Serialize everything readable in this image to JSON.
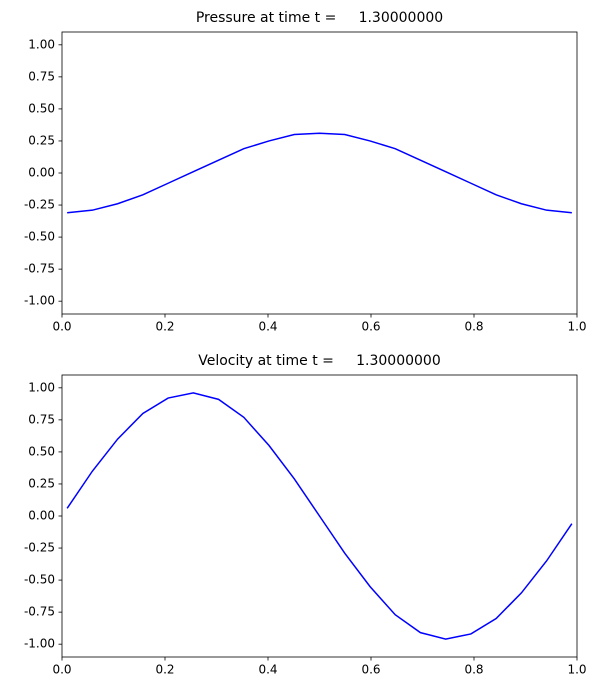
{
  "chart_data": [
    {
      "type": "line",
      "title": "Pressure at time t =     1.30000000",
      "x": [
        0.01,
        0.059,
        0.108,
        0.157,
        0.206,
        0.255,
        0.304,
        0.353,
        0.402,
        0.451,
        0.5,
        0.549,
        0.598,
        0.647,
        0.696,
        0.745,
        0.794,
        0.843,
        0.892,
        0.941,
        0.99
      ],
      "series": [
        {
          "color": "#0000ff",
          "values": [
            -0.31,
            -0.29,
            -0.24,
            -0.17,
            -0.08,
            0.01,
            0.1,
            0.19,
            0.25,
            0.3,
            0.31,
            0.3,
            0.25,
            0.19,
            0.1,
            0.01,
            -0.08,
            -0.17,
            -0.24,
            -0.29,
            -0.31
          ]
        }
      ],
      "xlim": [
        0,
        1
      ],
      "xticks": [
        {
          "value": 0,
          "label": "0.0"
        },
        0.2,
        0.4,
        0.6,
        0.8,
        {
          "value": 1,
          "label": "1.0"
        }
      ],
      "ylim": [
        -1.1,
        1.1
      ],
      "yticks": [
        {
          "value": -1,
          "label": "-1.00"
        },
        -0.75,
        {
          "value": -0.5,
          "label": "-0.50"
        },
        -0.25,
        {
          "value": 0,
          "label": "0.00"
        },
        0.25,
        {
          "value": 0.5,
          "label": "0.50"
        },
        0.75,
        {
          "value": 1,
          "label": "1.00"
        }
      ]
    },
    {
      "type": "line",
      "title": "Velocity at time t =     1.30000000",
      "x": [
        0.01,
        0.059,
        0.108,
        0.157,
        0.206,
        0.255,
        0.304,
        0.353,
        0.402,
        0.451,
        0.5,
        0.549,
        0.598,
        0.647,
        0.696,
        0.745,
        0.794,
        0.843,
        0.892,
        0.941,
        0.99
      ],
      "series": [
        {
          "color": "#0000ff",
          "values": [
            0.06,
            0.35,
            0.6,
            0.8,
            0.92,
            0.96,
            0.91,
            0.77,
            0.55,
            0.29,
            0.0,
            -0.29,
            -0.55,
            -0.77,
            -0.91,
            -0.96,
            -0.92,
            -0.8,
            -0.6,
            -0.35,
            -0.06
          ]
        }
      ],
      "xlim": [
        0,
        1
      ],
      "xticks": [
        {
          "value": 0,
          "label": "0.0"
        },
        0.2,
        0.4,
        0.6,
        0.8,
        {
          "value": 1,
          "label": "1.0"
        }
      ],
      "ylim": [
        -1.1,
        1.1
      ],
      "yticks": [
        {
          "value": -1,
          "label": "-1.00"
        },
        -0.75,
        {
          "value": -0.5,
          "label": "-0.50"
        },
        -0.25,
        {
          "value": 0,
          "label": "0.00"
        },
        0.25,
        {
          "value": 0.5,
          "label": "0.50"
        },
        0.75,
        {
          "value": 1,
          "label": "1.00"
        }
      ]
    }
  ]
}
